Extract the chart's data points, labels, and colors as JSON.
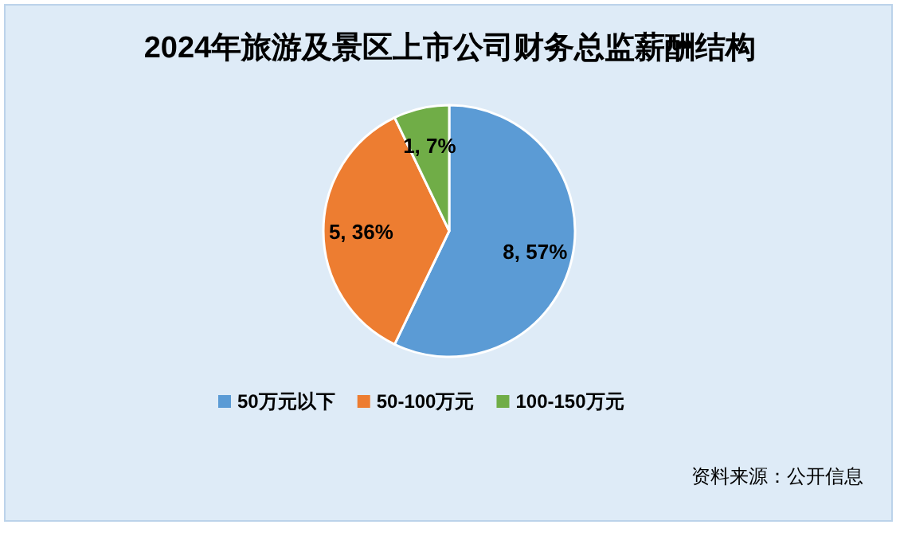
{
  "chart_data": {
    "type": "pie",
    "title": "2024年旅游及景区上市公司财务总监薪酬结构",
    "categories": [
      "50万元以下",
      "50-100万元",
      "100-150万元"
    ],
    "values": [
      8,
      5,
      1
    ],
    "colors": [
      "#5b9bd5",
      "#ed7d31",
      "#70ad47"
    ],
    "value_labels": [
      "8, 57%",
      "5, 36%",
      "1, 7%"
    ],
    "legend": "bottom",
    "annotations": [
      "资料来源：公开信息"
    ]
  }
}
